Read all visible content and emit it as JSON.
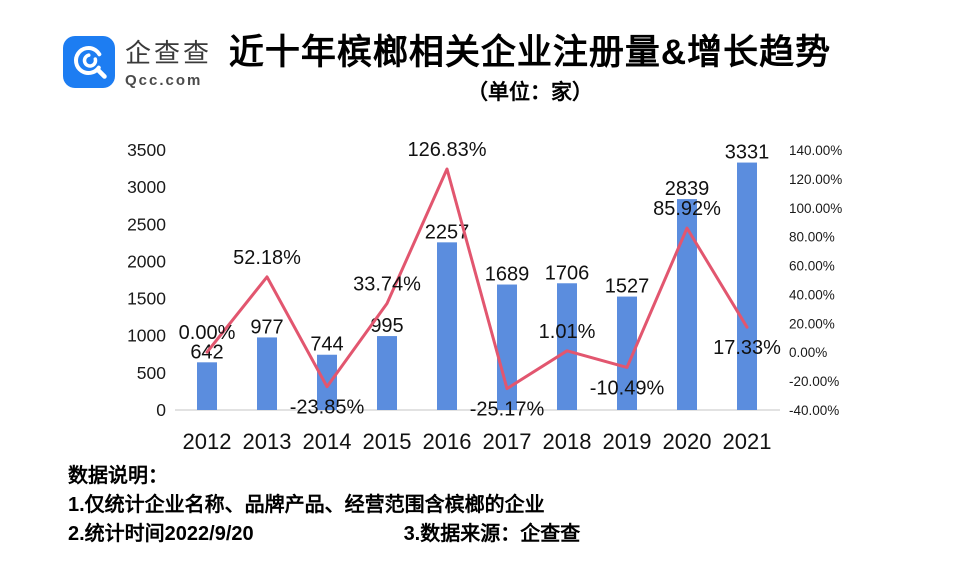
{
  "header": {
    "logo": {
      "name_cn": "企查查",
      "domain": "Qcc.com",
      "brand_color": "#1d7df2"
    }
  },
  "chart_data": {
    "type": "bar",
    "title": "近十年槟榔相关企业注册量&增长趋势",
    "subtitle": "（单位：家）",
    "categories": [
      "2012",
      "2013",
      "2014",
      "2015",
      "2016",
      "2017",
      "2018",
      "2019",
      "2020",
      "2021"
    ],
    "series": [
      {
        "name": "注册量",
        "type": "bar",
        "color": "#5b8dde",
        "values": [
          642,
          977,
          744,
          995,
          2257,
          1689,
          1706,
          1527,
          2839,
          3331
        ]
      },
      {
        "name": "增长率",
        "type": "line",
        "color": "#e2566f",
        "values": [
          0.0,
          52.18,
          -23.85,
          33.74,
          126.83,
          -25.17,
          1.01,
          -10.49,
          85.92,
          17.33
        ],
        "labels": [
          "0.00%",
          "52.18%",
          "-23.85%",
          "33.74%",
          "126.83%",
          "-25.17%",
          "1.01%",
          "-10.49%",
          "85.92%",
          "17.33%"
        ]
      }
    ],
    "left_axis": {
      "min": 0,
      "max": 3500,
      "step": 500,
      "ticks": [
        "3500",
        "3000",
        "2500",
        "2000",
        "1500",
        "1000",
        "500",
        "0"
      ]
    },
    "right_axis": {
      "min": -40,
      "max": 140,
      "step": 20,
      "ticks": [
        "140.00%",
        "120.00%",
        "100.00%",
        "80.00%",
        "60.00%",
        "40.00%",
        "20.00%",
        "0.00%",
        "-20.00%",
        "-40.00%"
      ]
    },
    "grid": false,
    "legend": "none",
    "baseline_color": "#d9d9d9",
    "label_color": "#1a1a1a"
  },
  "notes": {
    "heading": "数据说明：",
    "line1": "1.仅统计企业名称、品牌产品、经营范围含槟榔的企业",
    "line2": "2.统计时间2022/9/20",
    "line3": "3.数据来源：企查查"
  }
}
